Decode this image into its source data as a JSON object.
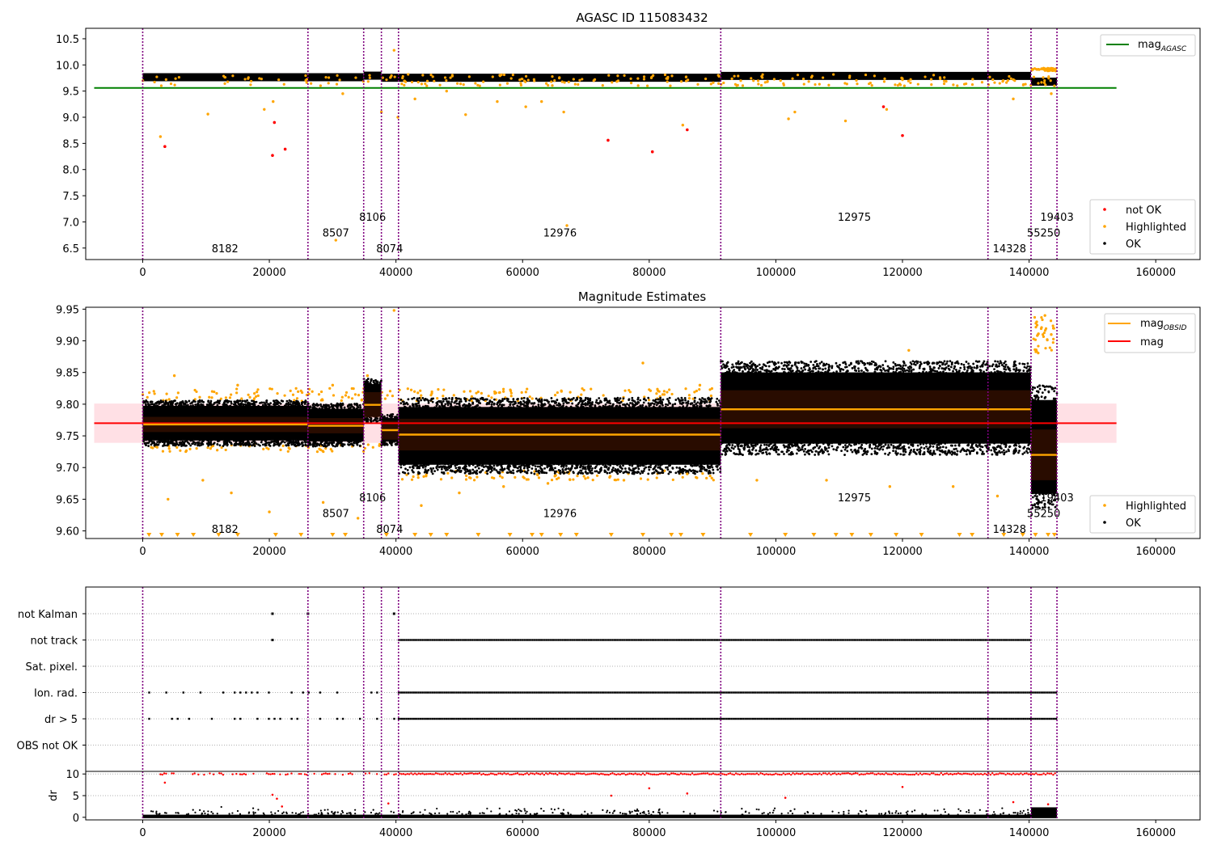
{
  "chart_data": [
    {
      "id": "top",
      "type": "scatter",
      "title": "AGASC ID 115083432",
      "xlabel": "",
      "ylabel": "",
      "xlim": [
        -9000,
        167000
      ],
      "ylim": [
        6.28,
        10.7
      ],
      "xticks": [
        0,
        20000,
        40000,
        60000,
        80000,
        100000,
        120000,
        140000,
        160000
      ],
      "yticks": [
        6.5,
        7.0,
        7.5,
        8.0,
        8.5,
        9.0,
        9.5,
        10.0,
        10.5
      ],
      "ytick_labels": [
        "6.5",
        "7.0",
        "7.5",
        "8.0",
        "8.5",
        "9.0",
        "9.5",
        "10.0",
        "10.5"
      ],
      "obsid_boundaries": [
        0,
        26100,
        34900,
        37700,
        40400,
        91300,
        133500,
        140300,
        144400
      ],
      "obsid_labels": [
        {
          "text": "8182",
          "x": 13000,
          "y": 6.5
        },
        {
          "text": "8507",
          "x": 30500,
          "y": 6.8
        },
        {
          "text": "8106",
          "x": 36300,
          "y": 7.1
        },
        {
          "text": "8074",
          "x": 39000,
          "y": 6.5
        },
        {
          "text": "12976",
          "x": 65900,
          "y": 6.8
        },
        {
          "text": "12975",
          "x": 112400,
          "y": 7.1
        },
        {
          "text": "14328",
          "x": 136900,
          "y": 6.5
        },
        {
          "text": "55250",
          "x": 142300,
          "y": 6.8
        },
        {
          "text": "19403",
          "x": 144400,
          "y": 7.1
        }
      ],
      "mag_agasc": {
        "name": "mag_AGASC",
        "value": 9.56,
        "x_range": [
          0,
          151500
        ],
        "color": "#008000"
      },
      "ok_band_segments": [
        {
          "x0": 0,
          "x1": 34900,
          "y": 9.765
        },
        {
          "x0": 34900,
          "x1": 37700,
          "y": 9.795
        },
        {
          "x0": 37700,
          "x1": 91300,
          "y": 9.755
        },
        {
          "x0": 91300,
          "x1": 140300,
          "y": 9.79
        },
        {
          "x0": 140300,
          "x1": 144400,
          "y": 9.68
        }
      ],
      "not_ok_points": [
        [
          3500,
          8.44
        ],
        [
          20500,
          8.27
        ],
        [
          20800,
          8.9
        ],
        [
          22500,
          8.39
        ],
        [
          73500,
          8.56
        ],
        [
          80500,
          8.34
        ],
        [
          86000,
          8.76
        ],
        [
          117000,
          9.2
        ],
        [
          120000,
          8.65
        ]
      ],
      "highlighted_points": [
        [
          2800,
          8.63
        ],
        [
          10300,
          9.06
        ],
        [
          19200,
          9.15
        ],
        [
          20600,
          9.3
        ],
        [
          30500,
          6.65
        ],
        [
          31600,
          9.45
        ],
        [
          37700,
          9.1
        ],
        [
          39700,
          10.28
        ],
        [
          40300,
          9.0
        ],
        [
          43000,
          9.35
        ],
        [
          48000,
          9.5
        ],
        [
          51000,
          9.05
        ],
        [
          56000,
          9.3
        ],
        [
          60500,
          9.2
        ],
        [
          63000,
          9.3
        ],
        [
          66500,
          9.1
        ],
        [
          67000,
          6.93
        ],
        [
          85300,
          8.85
        ],
        [
          102000,
          8.97
        ],
        [
          103000,
          9.1
        ],
        [
          111000,
          8.93
        ],
        [
          117500,
          9.15
        ],
        [
          137500,
          9.35
        ],
        [
          142500,
          9.9
        ],
        [
          143500,
          9.45
        ]
      ],
      "legend": [
        {
          "label": "mag_AGASC",
          "position": "top-right"
        },
        {
          "label": "not OK",
          "position": "bottom-right"
        },
        {
          "label": "Highlighted",
          "position": "bottom-right"
        },
        {
          "label": "OK",
          "position": "bottom-right"
        }
      ],
      "grid": false
    },
    {
      "id": "middle",
      "type": "scatter",
      "title": "Magnitude Estimates",
      "xlabel": "",
      "ylabel": "",
      "xlim": [
        -9000,
        167000
      ],
      "ylim": [
        9.588,
        9.953
      ],
      "xticks": [
        0,
        20000,
        40000,
        60000,
        80000,
        100000,
        120000,
        140000,
        160000
      ],
      "yticks": [
        9.6,
        9.65,
        9.7,
        9.75,
        9.8,
        9.85,
        9.9,
        9.95
      ],
      "ytick_labels": [
        "9.60",
        "9.65",
        "9.70",
        "9.75",
        "9.80",
        "9.85",
        "9.90",
        "9.95"
      ],
      "obsid_boundaries": [
        0,
        26100,
        34900,
        37700,
        40400,
        91300,
        133500,
        140300,
        144400
      ],
      "obsid_labels": [
        {
          "text": "8182",
          "x": 13000,
          "y": 9.603
        },
        {
          "text": "8507",
          "x": 30500,
          "y": 9.628
        },
        {
          "text": "8106",
          "x": 36300,
          "y": 9.653
        },
        {
          "text": "8074",
          "x": 39000,
          "y": 9.603
        },
        {
          "text": "12976",
          "x": 65900,
          "y": 9.628
        },
        {
          "text": "12975",
          "x": 112400,
          "y": 9.653
        },
        {
          "text": "14328",
          "x": 136900,
          "y": 9.603
        },
        {
          "text": "55250",
          "x": 142300,
          "y": 9.628
        },
        {
          "text": "19403",
          "x": 144400,
          "y": 9.653
        }
      ],
      "mag": {
        "name": "mag",
        "value": 9.77,
        "band": [
          9.739,
          9.801
        ],
        "x_range": [
          0,
          151500
        ],
        "color": "#ff0000"
      },
      "mag_obsid": [
        {
          "x0": 0,
          "x1": 26100,
          "value": 9.768,
          "err": 0.012
        },
        {
          "x0": 26100,
          "x1": 34900,
          "value": 9.766,
          "err": 0.012
        },
        {
          "x0": 34900,
          "x1": 37700,
          "value": 9.799,
          "err": 0.02
        },
        {
          "x0": 37700,
          "x1": 40400,
          "value": 9.759,
          "err": 0.015
        },
        {
          "x0": 40400,
          "x1": 91300,
          "value": 9.752,
          "err": 0.025
        },
        {
          "x0": 91300,
          "x1": 133500,
          "value": 9.792,
          "err": 0.03
        },
        {
          "x0": 133500,
          "x1": 140300,
          "value": 9.792,
          "err": 0.03
        },
        {
          "x0": 140300,
          "x1": 144400,
          "value": 9.72,
          "err": 0.04
        }
      ],
      "ok_clouds": [
        {
          "x0": 0,
          "x1": 26100,
          "y0": 9.734,
          "y1": 9.806
        },
        {
          "x0": 26100,
          "x1": 34900,
          "y0": 9.733,
          "y1": 9.801
        },
        {
          "x0": 34900,
          "x1": 37700,
          "y0": 9.772,
          "y1": 9.84
        },
        {
          "x0": 37700,
          "x1": 40400,
          "y0": 9.735,
          "y1": 9.784
        },
        {
          "x0": 40400,
          "x1": 91300,
          "y0": 9.69,
          "y1": 9.81
        },
        {
          "x0": 91300,
          "x1": 140300,
          "y0": 9.72,
          "y1": 9.868
        },
        {
          "x0": 140300,
          "x1": 144400,
          "y0": 9.635,
          "y1": 9.83
        }
      ],
      "highlighted_points": [
        [
          5000,
          9.845
        ],
        [
          15000,
          9.83
        ],
        [
          30000,
          9.83
        ],
        [
          35500,
          9.845
        ],
        [
          39700,
          9.948
        ],
        [
          79000,
          9.865
        ],
        [
          88000,
          9.83
        ],
        [
          121000,
          9.885
        ],
        [
          141200,
          9.93
        ],
        [
          142500,
          9.94
        ],
        [
          143500,
          9.91
        ],
        [
          4000,
          9.65
        ],
        [
          9500,
          9.68
        ],
        [
          14000,
          9.66
        ],
        [
          20000,
          9.63
        ],
        [
          28500,
          9.645
        ],
        [
          34000,
          9.62
        ],
        [
          44000,
          9.64
        ],
        [
          50000,
          9.66
        ],
        [
          57000,
          9.67
        ],
        [
          64000,
          9.675
        ],
        [
          76000,
          9.68
        ],
        [
          86000,
          9.69
        ],
        [
          97000,
          9.68
        ],
        [
          108000,
          9.68
        ],
        [
          118000,
          9.67
        ],
        [
          128000,
          9.67
        ],
        [
          135000,
          9.655
        ]
      ],
      "below_axis_markers": [
        1000,
        3000,
        5500,
        8000,
        12000,
        15000,
        21000,
        25000,
        30000,
        32000,
        38500,
        43000,
        45500,
        48000,
        53000,
        58000,
        61500,
        63000,
        66000,
        68500,
        74000,
        79000,
        83500,
        85000,
        88500,
        96000,
        101500,
        106000,
        109500,
        112000,
        115000,
        119000,
        123000,
        129000,
        131000,
        136000,
        139000,
        141000,
        143000,
        144000
      ],
      "legend": [
        {
          "label": "mag_OBSID",
          "position": "top-right"
        },
        {
          "label": "mag",
          "position": "top-right"
        },
        {
          "label": "Highlighted",
          "position": "bottom-right"
        },
        {
          "label": "OK",
          "position": "bottom-right"
        }
      ],
      "grid": false
    },
    {
      "id": "flags",
      "type": "scatter",
      "title": "",
      "xlim": [
        -9000,
        167000
      ],
      "categories": [
        "not Kalman",
        "not track",
        "Sat. pixel.",
        "Ion. rad.",
        "dr > 5",
        "OBS not OK"
      ],
      "obsid_boundaries": [
        0,
        26100,
        34900,
        37700,
        40400,
        91300,
        133500,
        140300,
        144400
      ],
      "flag_ranges": [
        {
          "flag": "not Kalman",
          "points": [
            20500,
            26100,
            39700
          ]
        },
        {
          "flag": "not track",
          "points": [
            20500
          ],
          "dense_range": [
            40400,
            140300
          ]
        },
        {
          "flag": "Sat. pixel.",
          "points": []
        },
        {
          "flag": "Ion. rad.",
          "sparse_range": [
            1000,
            40400
          ],
          "dense_range": [
            40400,
            144400
          ]
        },
        {
          "flag": "dr > 5",
          "sparse_range": [
            1000,
            40400
          ],
          "dense_range": [
            40400,
            144400
          ]
        },
        {
          "flag": "OBS not OK",
          "points": []
        }
      ],
      "grid": "horizontal dotted"
    },
    {
      "id": "dr",
      "type": "scatter",
      "title": "",
      "xlabel": "",
      "ylabel": "dr",
      "xlim": [
        -9000,
        167000
      ],
      "ylim": [
        -0.6,
        10.6
      ],
      "xticks": [
        0,
        20000,
        40000,
        60000,
        80000,
        100000,
        120000,
        140000,
        160000
      ],
      "yticks": [
        0,
        5,
        10
      ],
      "ytick_labels": [
        "0",
        "5",
        "10"
      ],
      "obsid_boundaries": [
        0,
        26100,
        34900,
        37700,
        40400,
        91300,
        133500,
        140300,
        144400
      ],
      "capped_value": 10,
      "outliers": [
        [
          3500,
          8
        ],
        [
          20500,
          5.2
        ],
        [
          21200,
          4.3
        ],
        [
          22000,
          2.5
        ],
        [
          38800,
          3.2
        ],
        [
          74000,
          5
        ],
        [
          80000,
          6.7
        ],
        [
          86000,
          5.5
        ],
        [
          101500,
          4.5
        ],
        [
          120000,
          7
        ],
        [
          137500,
          3.5
        ],
        [
          143000,
          3
        ]
      ],
      "grid": "horizontal dotted"
    }
  ],
  "colors": {
    "ok": "#000000",
    "highlighted": "#ffa500",
    "not_ok": "#ff0000",
    "obsid_line": "#800080",
    "mag_agasc": "#008000",
    "mag": "#ff0000",
    "mag_obsid": "#ffa500",
    "mag_band": "#ffdde2"
  },
  "x_tick_labels": [
    "0",
    "20000",
    "40000",
    "60000",
    "80000",
    "100000",
    "120000",
    "140000",
    "160000"
  ]
}
